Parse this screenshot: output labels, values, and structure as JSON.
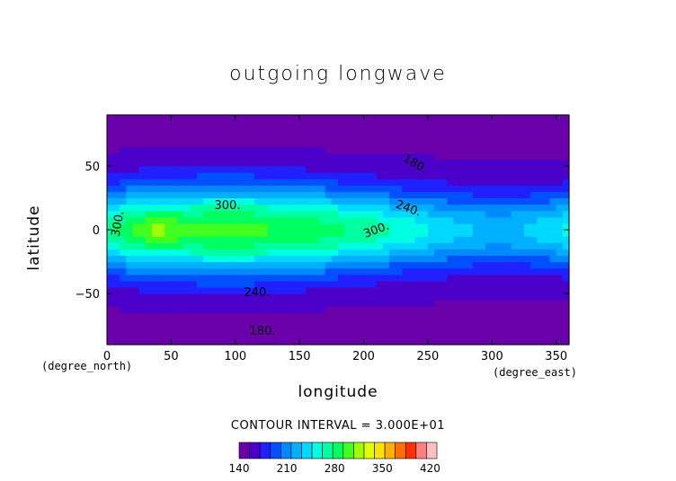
{
  "chart_data": {
    "type": "contour",
    "title": "outgoing longwave",
    "xlabel": "longitude",
    "ylabel": "latitude",
    "x_unit": "(degree_east)",
    "y_unit": "(degree_north)",
    "xlim": [
      0,
      360
    ],
    "ylim": [
      -90,
      90
    ],
    "x_ticks": [
      0,
      50,
      100,
      150,
      200,
      250,
      300,
      350
    ],
    "y_ticks": [
      -50,
      0,
      50
    ],
    "contour_interval_text": "CONTOUR INTERVAL = 3.000E+01",
    "contour_line_labels": [
      "180.",
      "240.",
      "300.",
      "300.",
      "300.",
      "240.",
      "180."
    ],
    "colorbar": {
      "range": [
        140,
        430
      ],
      "tick_labels": [
        140,
        210,
        280,
        350,
        420
      ],
      "colors": [
        "#6a00aa",
        "#4a00c8",
        "#2020ff",
        "#0050ff",
        "#0088ff",
        "#00b0ff",
        "#00d8ff",
        "#00ffe0",
        "#00ffa0",
        "#00ff60",
        "#40ff20",
        "#a0ff00",
        "#e0ff00",
        "#ffe000",
        "#ffb000",
        "#ff7000",
        "#ff3000",
        "#ff8080",
        "#ffc0c0"
      ]
    }
  }
}
